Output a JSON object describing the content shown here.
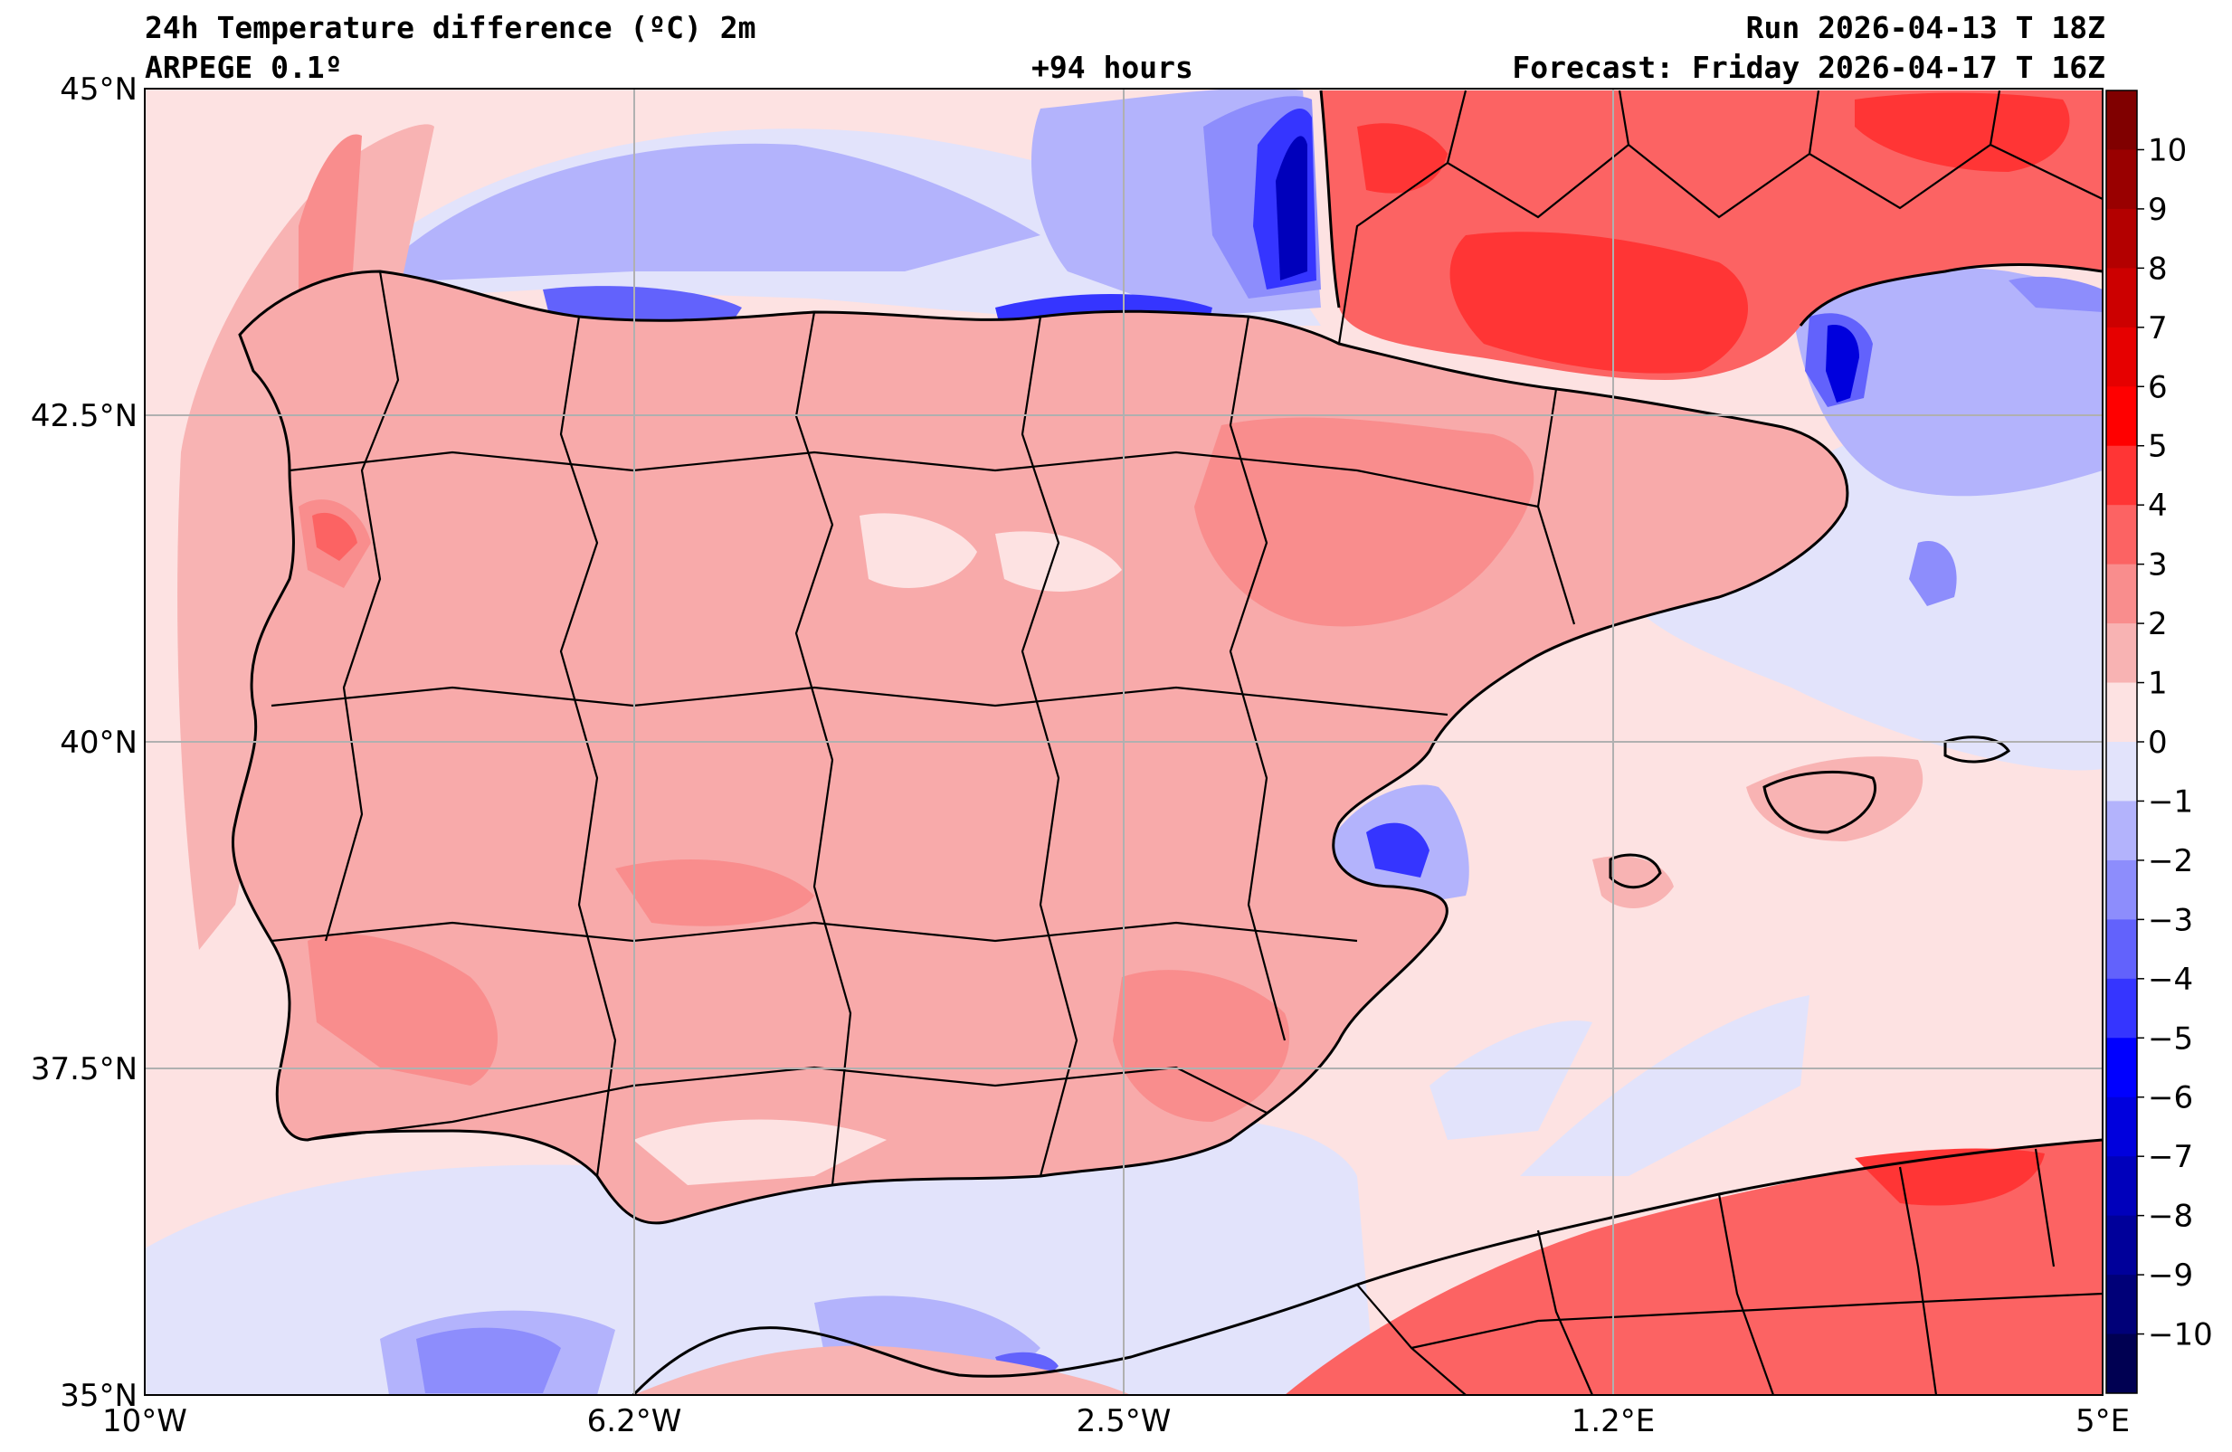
{
  "header": {
    "title": "24h Temperature difference (ºC) 2m",
    "model": "ARPEGE 0.1º",
    "lead": "+94 hours",
    "run": "Run 2026-04-13 T 18Z",
    "forecast": "Forecast: Friday 2026-04-17 T 16Z"
  },
  "map": {
    "extent": {
      "lon": [
        -10,
        5
      ],
      "lat": [
        35,
        45
      ]
    },
    "lat_ticks": [
      {
        "value": 45,
        "label": "45°N"
      },
      {
        "value": 42.5,
        "label": "42.5°N"
      },
      {
        "value": 40,
        "label": "40°N"
      },
      {
        "value": 37.5,
        "label": "37.5°N"
      },
      {
        "value": 35,
        "label": "35°N"
      }
    ],
    "lon_ticks": [
      {
        "value": -10,
        "label": "10°W"
      },
      {
        "value": -6.25,
        "label": "6.2°W"
      },
      {
        "value": -2.5,
        "label": "2.5°W"
      },
      {
        "value": 1.25,
        "label": "1.2°E"
      },
      {
        "value": 5,
        "label": "5°E"
      }
    ],
    "grid": true,
    "ocean_anomaly_color": "#fde2e2",
    "land_anomaly_color": "#f8aaaa"
  },
  "colorbar": {
    "ticks": [
      {
        "value": 10,
        "label": "10"
      },
      {
        "value": 9,
        "label": "9"
      },
      {
        "value": 8,
        "label": "8"
      },
      {
        "value": 7,
        "label": "7"
      },
      {
        "value": 6,
        "label": "6"
      },
      {
        "value": 5,
        "label": "5"
      },
      {
        "value": 4,
        "label": "4"
      },
      {
        "value": 3,
        "label": "3"
      },
      {
        "value": 2,
        "label": "2"
      },
      {
        "value": 1,
        "label": "1"
      },
      {
        "value": 0,
        "label": "0"
      },
      {
        "value": -1,
        "label": "−1"
      },
      {
        "value": -2,
        "label": "−2"
      },
      {
        "value": -3,
        "label": "−3"
      },
      {
        "value": -4,
        "label": "−4"
      },
      {
        "value": -5,
        "label": "−5"
      },
      {
        "value": -6,
        "label": "−6"
      },
      {
        "value": -7,
        "label": "−7"
      },
      {
        "value": -8,
        "label": "−8"
      },
      {
        "value": -9,
        "label": "−9"
      },
      {
        "value": -10,
        "label": "−10"
      }
    ],
    "colors": [
      "#800000",
      "#990000",
      "#b30000",
      "#cc0000",
      "#e60000",
      "#ff0000",
      "#ff3535",
      "#fc6363",
      "#f98d8d",
      "#f8b3b3",
      "#fde2e2",
      "#e2e3fb",
      "#b3b3fc",
      "#8d8dfc",
      "#6262fc",
      "#3535ff",
      "#0000ff",
      "#0000dd",
      "#0000bb",
      "#00009a",
      "#000078",
      "#000052"
    ]
  }
}
